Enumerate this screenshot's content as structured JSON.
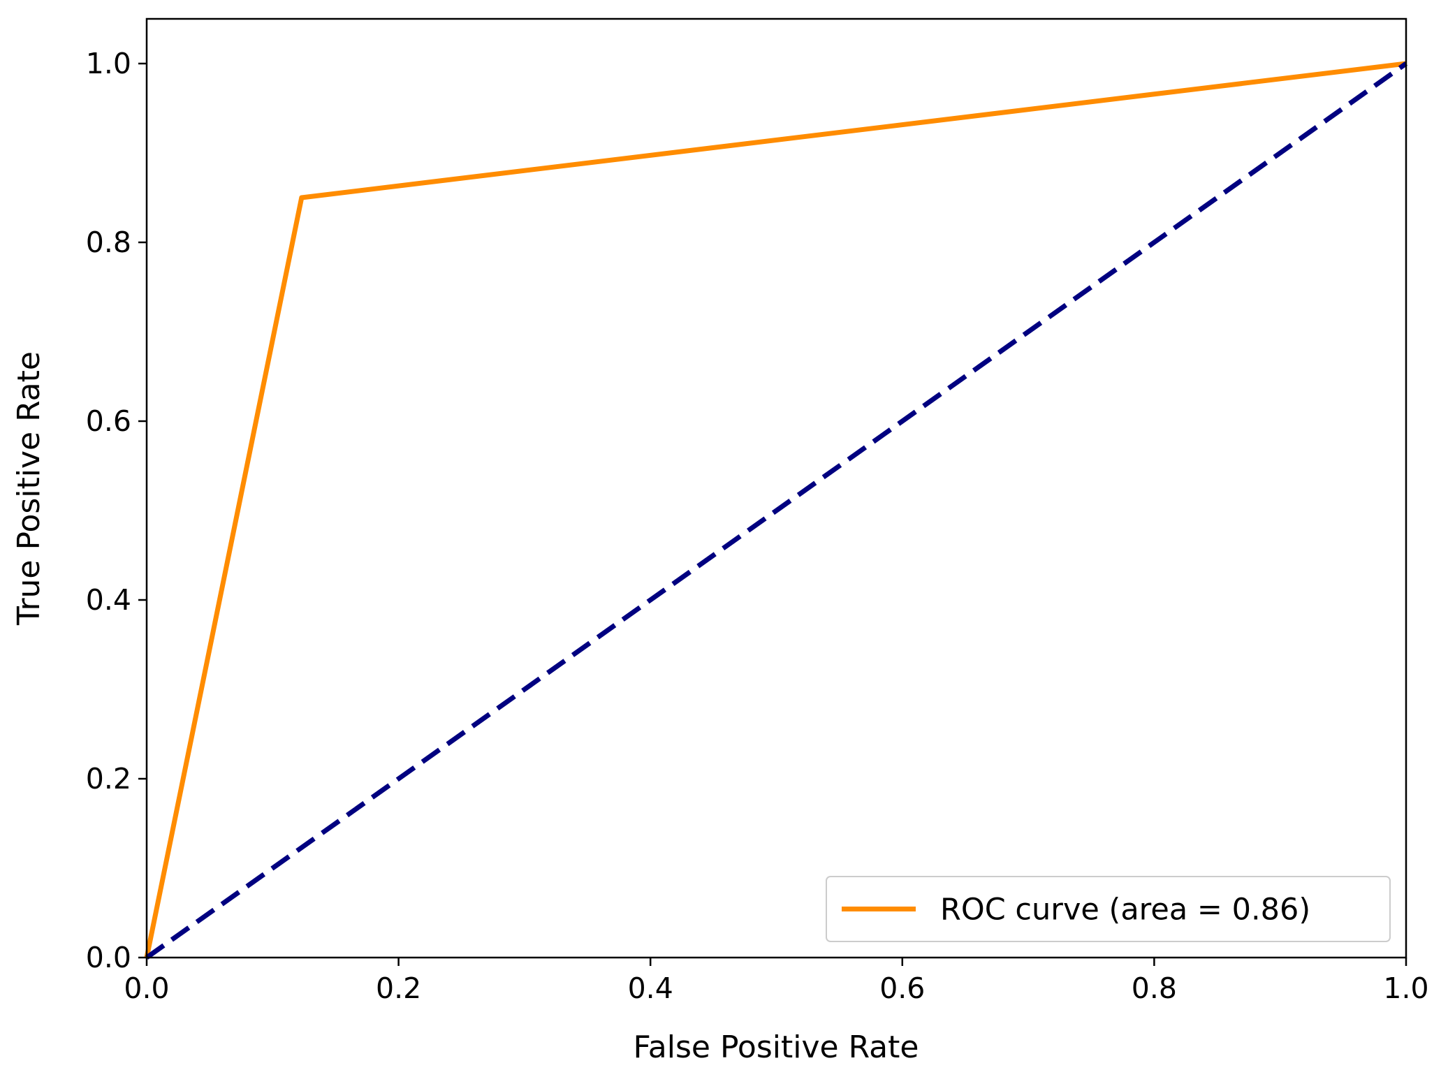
{
  "chart_data": {
    "type": "line",
    "title": "",
    "xlabel": "False Positive Rate",
    "ylabel": "True Positive Rate",
    "xlim": [
      0.0,
      1.0
    ],
    "ylim": [
      0.0,
      1.05
    ],
    "xticks": [
      "0.0",
      "0.2",
      "0.4",
      "0.6",
      "0.8",
      "1.0"
    ],
    "yticks": [
      "0.0",
      "0.2",
      "0.4",
      "0.6",
      "0.8",
      "1.0"
    ],
    "grid": false,
    "legend_position": "lower right",
    "series": [
      {
        "name": "ROC curve (area = 0.86)",
        "color": "#ff8c00",
        "style": "solid",
        "x": [
          0.0,
          0.123,
          1.0
        ],
        "y": [
          0.0,
          0.85,
          1.0
        ]
      },
      {
        "color": "#000080",
        "style": "dashed",
        "x": [
          0.0,
          1.0
        ],
        "y": [
          0.0,
          1.0
        ]
      }
    ]
  }
}
